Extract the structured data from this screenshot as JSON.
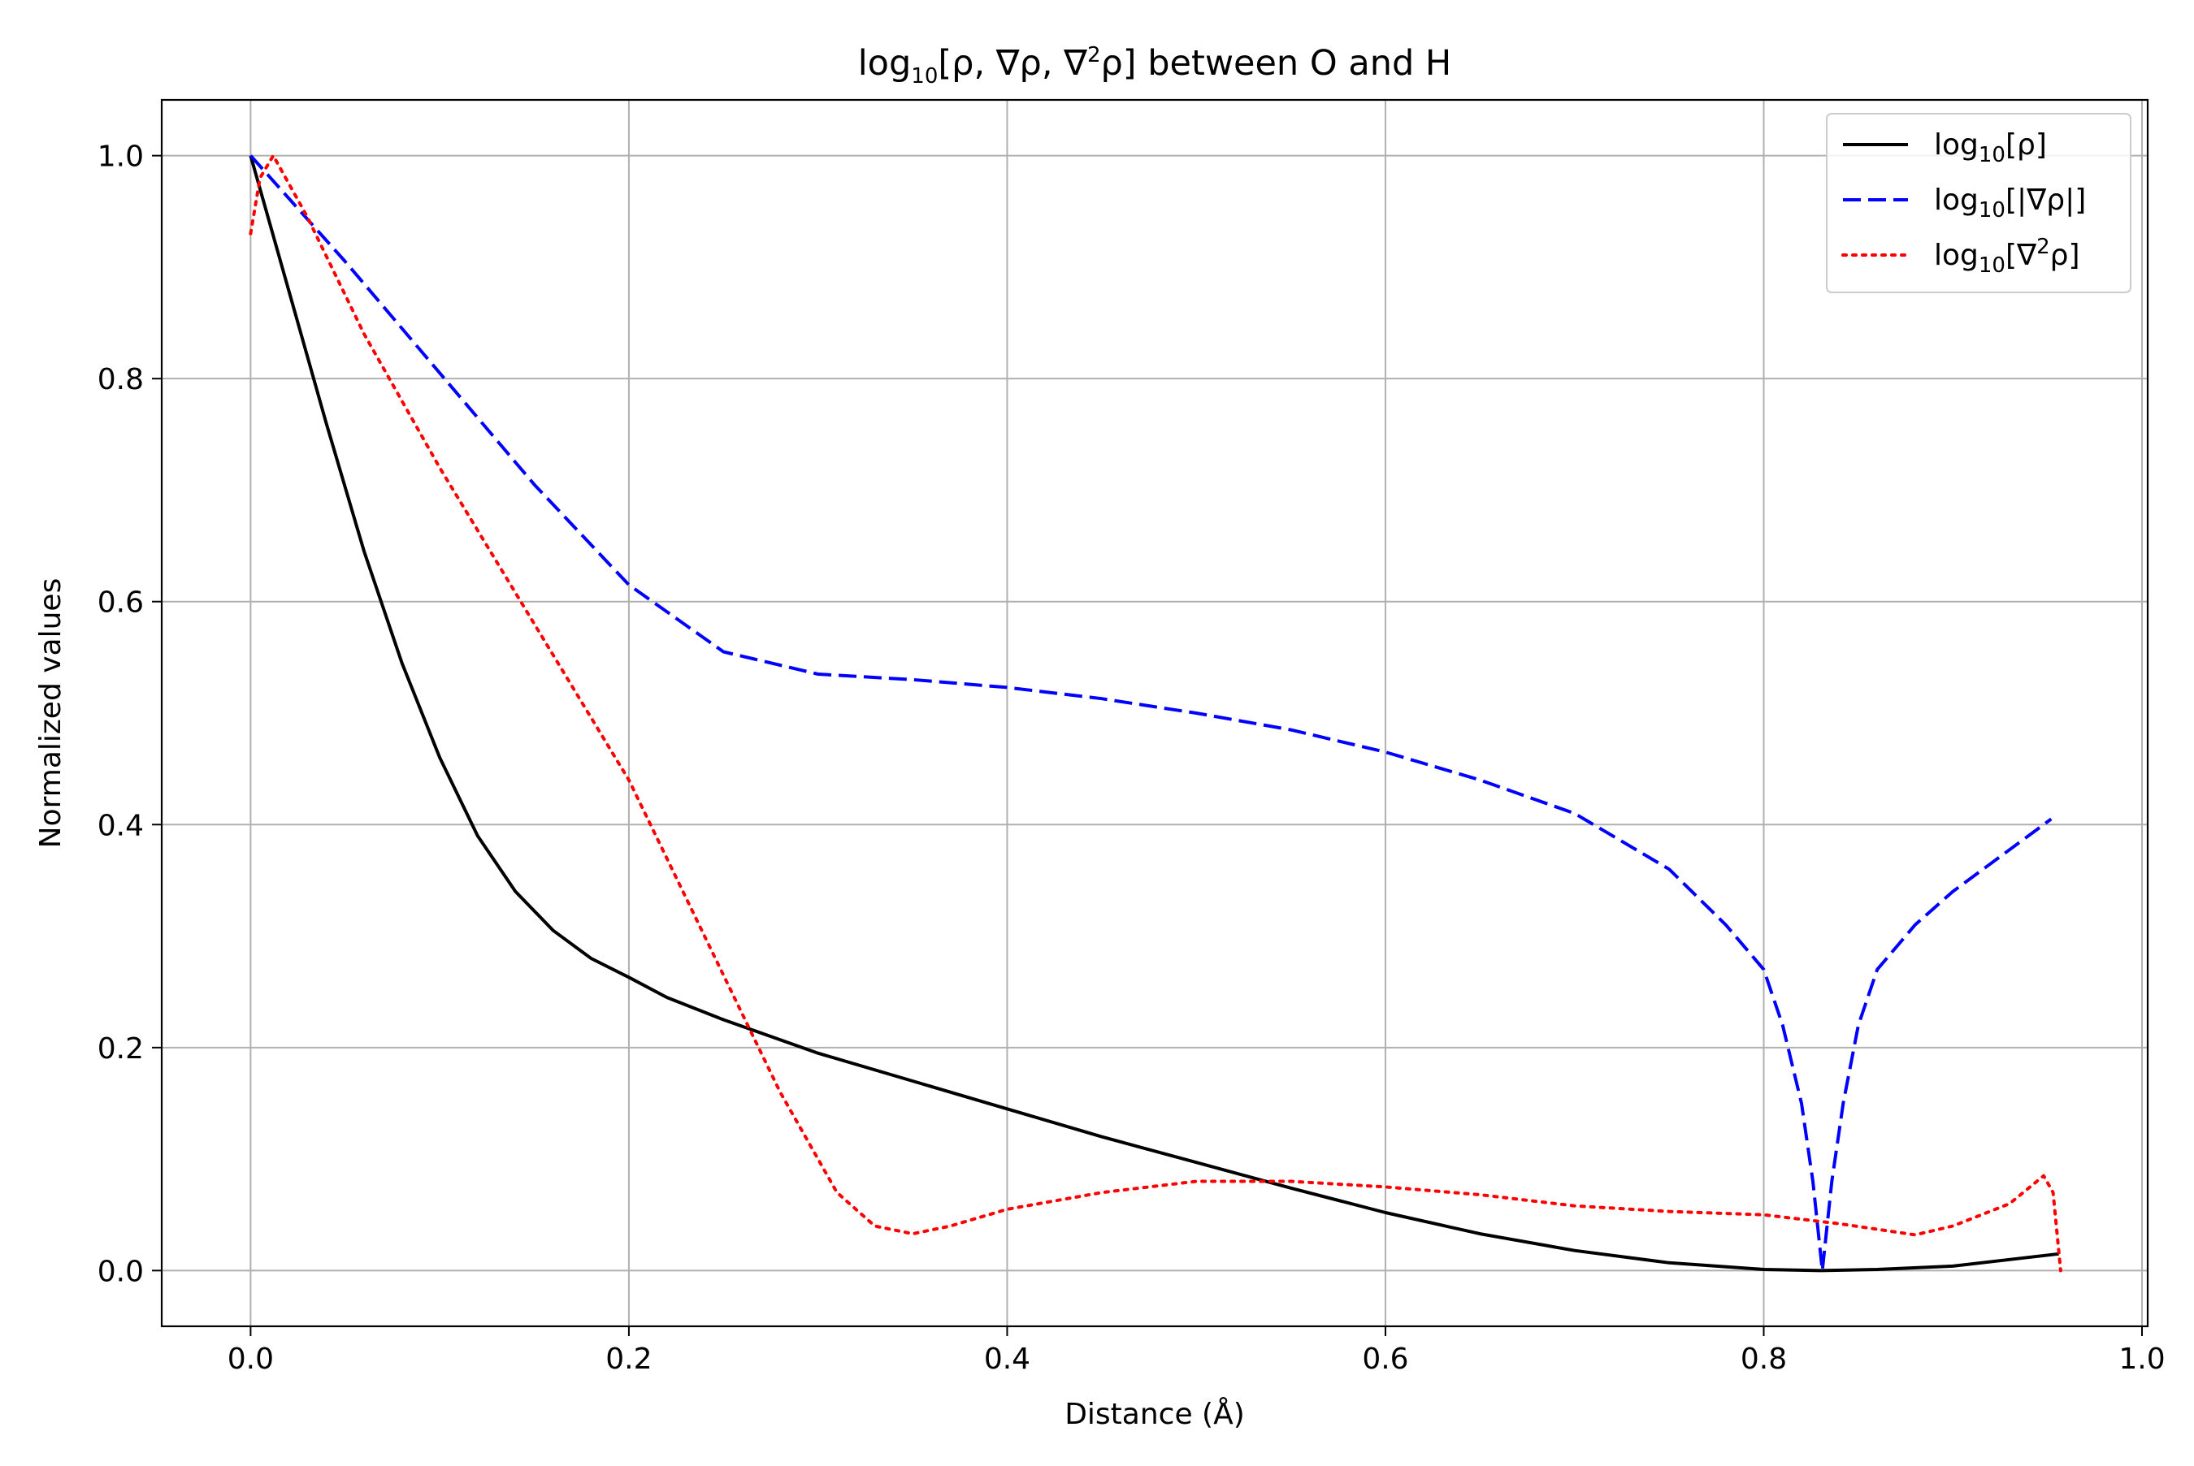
{
  "chart_data": {
    "type": "line",
    "title": {
      "prefix": "log",
      "subscript": "10",
      "middle": "[ρ, ∇ρ, ∇",
      "superscript": "2",
      "suffix": "ρ] between O and H"
    },
    "xlabel": "Distance (Å)",
    "ylabel": "Normalized values",
    "xlim": [
      -0.047,
      1.003
    ],
    "ylim": [
      -0.05,
      1.05
    ],
    "xticks": [
      0.0,
      0.2,
      0.4,
      0.6,
      0.8,
      1.0
    ],
    "xtick_labels": [
      "0.0",
      "0.2",
      "0.4",
      "0.6",
      "0.8",
      "1.0"
    ],
    "yticks": [
      0.0,
      0.2,
      0.4,
      0.6,
      0.8,
      1.0
    ],
    "ytick_labels": [
      "0.0",
      "0.2",
      "0.4",
      "0.6",
      "0.8",
      "1.0"
    ],
    "grid": true,
    "legend_position": "top-right",
    "series": [
      {
        "name": {
          "prefix": "log",
          "subscript": "10",
          "middle": "[ρ]",
          "superscript": "",
          "suffix": ""
        },
        "color": "#000000",
        "style": "solid",
        "x": [
          0.0,
          0.02,
          0.04,
          0.06,
          0.08,
          0.1,
          0.12,
          0.14,
          0.16,
          0.18,
          0.2,
          0.22,
          0.25,
          0.3,
          0.35,
          0.4,
          0.45,
          0.5,
          0.55,
          0.6,
          0.65,
          0.7,
          0.75,
          0.8,
          0.83,
          0.86,
          0.9,
          0.956
        ],
        "y": [
          1.0,
          0.88,
          0.76,
          0.645,
          0.545,
          0.46,
          0.39,
          0.34,
          0.305,
          0.28,
          0.263,
          0.245,
          0.225,
          0.195,
          0.17,
          0.145,
          0.12,
          0.097,
          0.074,
          0.052,
          0.033,
          0.018,
          0.007,
          0.001,
          0.0,
          0.001,
          0.004,
          0.015
        ]
      },
      {
        "name": {
          "prefix": "log",
          "subscript": "10",
          "middle": "[|∇ρ|]",
          "superscript": "",
          "suffix": ""
        },
        "color": "#0000ff",
        "style": "dashed",
        "x": [
          0.0,
          0.05,
          0.1,
          0.15,
          0.2,
          0.25,
          0.3,
          0.35,
          0.4,
          0.45,
          0.5,
          0.55,
          0.6,
          0.65,
          0.7,
          0.75,
          0.78,
          0.8,
          0.81,
          0.82,
          0.826,
          0.831,
          0.836,
          0.842,
          0.85,
          0.86,
          0.88,
          0.9,
          0.92,
          0.94,
          0.952
        ],
        "y": [
          1.0,
          0.905,
          0.805,
          0.705,
          0.615,
          0.555,
          0.535,
          0.53,
          0.523,
          0.513,
          0.5,
          0.485,
          0.465,
          0.44,
          0.41,
          0.36,
          0.31,
          0.27,
          0.22,
          0.15,
          0.08,
          0.0,
          0.08,
          0.15,
          0.22,
          0.27,
          0.31,
          0.34,
          0.365,
          0.39,
          0.405
        ]
      },
      {
        "name": {
          "prefix": "log",
          "subscript": "10",
          "middle": "[∇",
          "superscript": "2",
          "suffix": "ρ]"
        },
        "color": "#ff0000",
        "style": "dotted",
        "x": [
          0.0,
          0.005,
          0.012,
          0.03,
          0.06,
          0.1,
          0.15,
          0.2,
          0.24,
          0.28,
          0.31,
          0.33,
          0.35,
          0.37,
          0.4,
          0.45,
          0.5,
          0.55,
          0.6,
          0.65,
          0.7,
          0.75,
          0.8,
          0.84,
          0.88,
          0.9,
          0.93,
          0.948,
          0.953,
          0.957
        ],
        "y": [
          0.93,
          0.98,
          1.0,
          0.945,
          0.84,
          0.72,
          0.58,
          0.44,
          0.3,
          0.16,
          0.07,
          0.04,
          0.033,
          0.04,
          0.055,
          0.07,
          0.08,
          0.08,
          0.075,
          0.068,
          0.058,
          0.053,
          0.05,
          0.042,
          0.032,
          0.04,
          0.06,
          0.085,
          0.07,
          0.0
        ]
      }
    ]
  }
}
